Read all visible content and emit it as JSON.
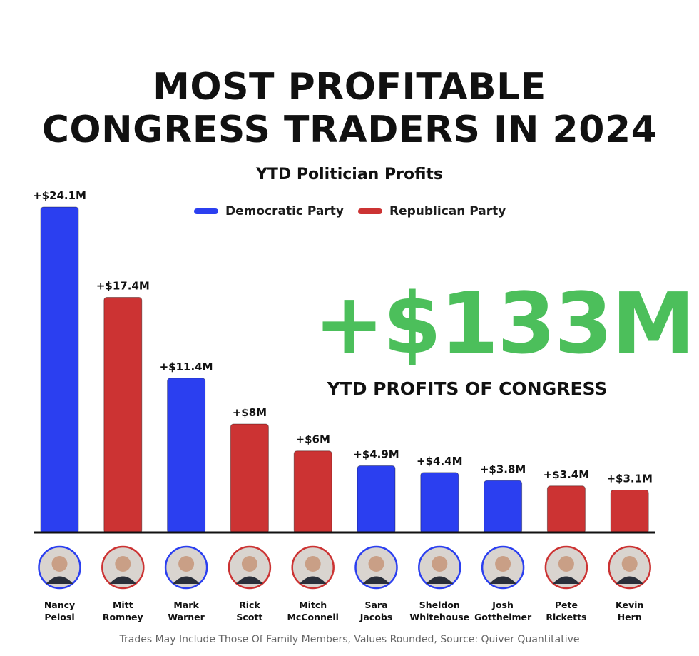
{
  "title_line1": "MOST PROFITABLE",
  "title_line2": "CONGRESS TRADERS IN 2024",
  "big_total": "+$133M",
  "big_caption": "YTD PROFITS OF CONGRESS",
  "footnote": "Trades May Include Those Of Family Members, Values Rounded, Source: Quiver Quantitative",
  "colors": {
    "democratic": "#2b3ff0",
    "republican": "#cc3333",
    "total_green": "#4cbf5b"
  },
  "chart_data": {
    "type": "bar",
    "title": "YTD Politician Profits",
    "legend": [
      {
        "name": "Democratic Party",
        "party": "democratic"
      },
      {
        "name": "Republican Party",
        "party": "republican"
      }
    ],
    "legend_position": "top-center",
    "grid": false,
    "ylim": [
      0,
      24.1
    ],
    "unit": "$M",
    "categories": [
      [
        "Nancy",
        "Pelosi"
      ],
      [
        "Mitt",
        "Romney"
      ],
      [
        "Mark",
        "Warner"
      ],
      [
        "Rick",
        "Scott"
      ],
      [
        "Mitch",
        "McConnell"
      ],
      [
        "Sara",
        "Jacobs"
      ],
      [
        "Sheldon",
        "Whitehouse"
      ],
      [
        "Josh",
        "Gottheimer"
      ],
      [
        "Pete",
        "Ricketts"
      ],
      [
        "Kevin",
        "Hern"
      ]
    ],
    "values": [
      24.1,
      17.4,
      11.4,
      8,
      6,
      4.9,
      4.4,
      3.8,
      3.4,
      3.1
    ],
    "labels": [
      "+$24.1M",
      "+$17.4M",
      "+$11.4M",
      "+$8M",
      "+$6M",
      "+$4.9M",
      "+$4.4M",
      "+$3.8M",
      "+$3.4M",
      "+$3.1M"
    ],
    "party": [
      "democratic",
      "republican",
      "democratic",
      "republican",
      "republican",
      "democratic",
      "democratic",
      "democratic",
      "republican",
      "republican"
    ]
  }
}
